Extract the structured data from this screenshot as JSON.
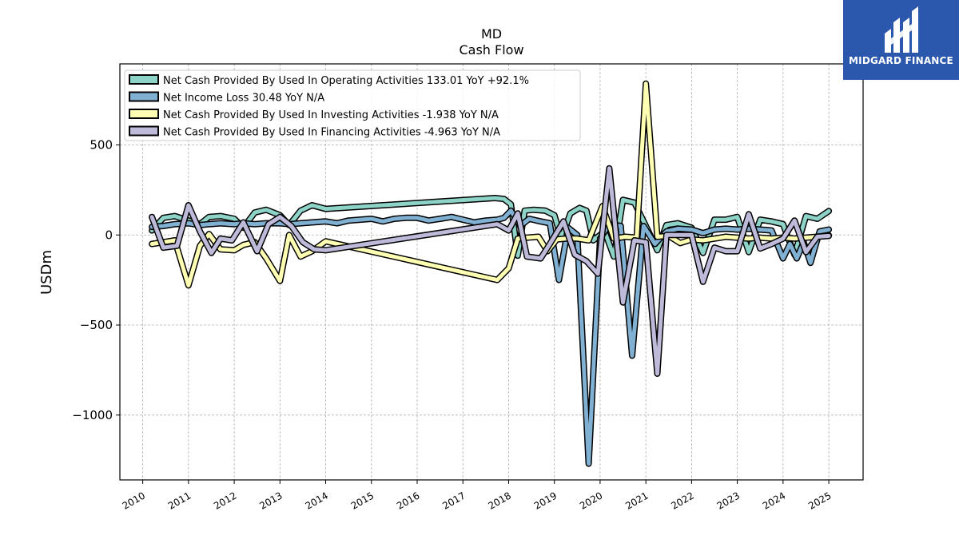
{
  "brand": {
    "name": "MIDGARD FINANCE",
    "color": "#2b57ad"
  },
  "chart_data": {
    "type": "line",
    "title": "MD",
    "subtitle": "Cash Flow",
    "ylabel": "USDm",
    "xlabel": "",
    "xlim": [
      2009.5,
      2025.75
    ],
    "ylim": [
      -1360,
      950
    ],
    "yticks": [
      -1000,
      -500,
      0,
      500
    ],
    "ytick_labels": [
      "−1000",
      "−500",
      "0",
      "500"
    ],
    "xticks": [
      2010,
      2011,
      2012,
      2013,
      2014,
      2015,
      2016,
      2017,
      2018,
      2019,
      2020,
      2021,
      2022,
      2023,
      2024,
      2025
    ],
    "xtick_labels": [
      "2010",
      "2011",
      "2012",
      "2013",
      "2014",
      "2015",
      "2016",
      "2017",
      "2018",
      "2019",
      "2020",
      "2021",
      "2022",
      "2023",
      "2024",
      "2025"
    ],
    "grid": true,
    "legend_position": "top-left",
    "series": [
      {
        "name": "Net Cash Provided By Used In Operating Activities",
        "legend": "Net Cash Provided By Used In Operating Activities  133.01 YoY +92.1%",
        "color": "#8dd3c7",
        "points": [
          [
            2010.2,
            25
          ],
          [
            2010.45,
            95
          ],
          [
            2010.7,
            105
          ],
          [
            2011.0,
            80
          ],
          [
            2011.25,
            60
          ],
          [
            2011.45,
            100
          ],
          [
            2011.7,
            105
          ],
          [
            2012.0,
            90
          ],
          [
            2012.2,
            40
          ],
          [
            2012.45,
            125
          ],
          [
            2012.7,
            140
          ],
          [
            2013.0,
            110
          ],
          [
            2013.2,
            55
          ],
          [
            2013.45,
            135
          ],
          [
            2013.7,
            165
          ],
          [
            2014.0,
            145
          ],
          [
            2017.7,
            205
          ],
          [
            2017.9,
            200
          ],
          [
            2018.05,
            170
          ],
          [
            2018.2,
            -115
          ],
          [
            2018.35,
            135
          ],
          [
            2018.55,
            140
          ],
          [
            2018.8,
            135
          ],
          [
            2019.0,
            110
          ],
          [
            2019.15,
            -20
          ],
          [
            2019.35,
            120
          ],
          [
            2019.55,
            150
          ],
          [
            2019.7,
            135
          ],
          [
            2019.85,
            -30
          ],
          [
            2020.1,
            20
          ],
          [
            2020.3,
            -120
          ],
          [
            2020.5,
            195
          ],
          [
            2020.75,
            180
          ],
          [
            2021.0,
            50
          ],
          [
            2021.25,
            -85
          ],
          [
            2021.45,
            55
          ],
          [
            2021.7,
            65
          ],
          [
            2022.0,
            40
          ],
          [
            2022.25,
            -100
          ],
          [
            2022.5,
            85
          ],
          [
            2022.75,
            85
          ],
          [
            2023.0,
            100
          ],
          [
            2023.25,
            -95
          ],
          [
            2023.5,
            85
          ],
          [
            2023.75,
            75
          ],
          [
            2024.0,
            60
          ],
          [
            2024.25,
            -110
          ],
          [
            2024.5,
            105
          ],
          [
            2024.75,
            90
          ],
          [
            2025.0,
            133
          ]
        ]
      },
      {
        "name": "Net Income Loss",
        "legend": "Net Income Loss  30.48 YoY N/A",
        "color": "#80b1d3",
        "points": [
          [
            2010.2,
            45
          ],
          [
            2010.45,
            50
          ],
          [
            2010.7,
            60
          ],
          [
            2011.0,
            65
          ],
          [
            2011.25,
            55
          ],
          [
            2011.45,
            60
          ],
          [
            2011.7,
            65
          ],
          [
            2012.0,
            60
          ],
          [
            2012.2,
            65
          ],
          [
            2012.45,
            60
          ],
          [
            2012.7,
            65
          ],
          [
            2013.0,
            65
          ],
          [
            2013.2,
            60
          ],
          [
            2013.45,
            65
          ],
          [
            2013.7,
            70
          ],
          [
            2014.0,
            75
          ],
          [
            2014.25,
            65
          ],
          [
            2014.5,
            80
          ],
          [
            2014.75,
            85
          ],
          [
            2015.0,
            90
          ],
          [
            2015.25,
            75
          ],
          [
            2015.5,
            90
          ],
          [
            2015.75,
            95
          ],
          [
            2016.0,
            95
          ],
          [
            2016.25,
            80
          ],
          [
            2016.5,
            90
          ],
          [
            2016.75,
            100
          ],
          [
            2017.0,
            85
          ],
          [
            2017.25,
            70
          ],
          [
            2017.5,
            80
          ],
          [
            2017.75,
            85
          ],
          [
            2017.9,
            95
          ],
          [
            2018.05,
            135
          ],
          [
            2018.25,
            50
          ],
          [
            2018.45,
            90
          ],
          [
            2018.7,
            75
          ],
          [
            2018.9,
            65
          ],
          [
            2019.1,
            -250
          ],
          [
            2019.3,
            40
          ],
          [
            2019.5,
            0
          ],
          [
            2019.75,
            -1270
          ],
          [
            2020.0,
            -20
          ],
          [
            2020.2,
            60
          ],
          [
            2020.45,
            50
          ],
          [
            2020.7,
            -670
          ],
          [
            2020.95,
            50
          ],
          [
            2021.2,
            -50
          ],
          [
            2021.45,
            20
          ],
          [
            2021.7,
            35
          ],
          [
            2022.0,
            30
          ],
          [
            2022.25,
            10
          ],
          [
            2022.5,
            30
          ],
          [
            2022.75,
            35
          ],
          [
            2023.0,
            30
          ],
          [
            2023.25,
            35
          ],
          [
            2023.5,
            30
          ],
          [
            2023.75,
            25
          ],
          [
            2024.0,
            -130
          ],
          [
            2024.15,
            -50
          ],
          [
            2024.3,
            -130
          ],
          [
            2024.45,
            -40
          ],
          [
            2024.6,
            -155
          ],
          [
            2024.8,
            20
          ],
          [
            2025.0,
            30
          ]
        ]
      },
      {
        "name": "Net Cash Provided By Used In Investing Activities",
        "legend": "Net Cash Provided By Used In Investing Activities  -1.938 YoY N/A",
        "color": "#ffffb3",
        "points": [
          [
            2010.2,
            -50
          ],
          [
            2010.45,
            -40
          ],
          [
            2010.7,
            -30
          ],
          [
            2011.0,
            -280
          ],
          [
            2011.25,
            -60
          ],
          [
            2011.45,
            5
          ],
          [
            2011.7,
            -80
          ],
          [
            2012.0,
            -85
          ],
          [
            2012.2,
            -55
          ],
          [
            2012.45,
            -40
          ],
          [
            2012.7,
            -130
          ],
          [
            2013.0,
            -255
          ],
          [
            2013.2,
            0
          ],
          [
            2013.45,
            -120
          ],
          [
            2013.7,
            -90
          ],
          [
            2014.0,
            -35
          ],
          [
            2017.75,
            -250
          ],
          [
            2018.0,
            -185
          ],
          [
            2018.2,
            -20
          ],
          [
            2018.4,
            -15
          ],
          [
            2018.65,
            -10
          ],
          [
            2018.85,
            -90
          ],
          [
            2019.05,
            -25
          ],
          [
            2019.25,
            -20
          ],
          [
            2019.5,
            -20
          ],
          [
            2019.75,
            -30
          ],
          [
            2020.05,
            160
          ],
          [
            2020.3,
            -20
          ],
          [
            2020.55,
            -10
          ],
          [
            2020.8,
            -15
          ],
          [
            2021.0,
            840
          ],
          [
            2021.25,
            -10
          ],
          [
            2021.5,
            -5
          ],
          [
            2021.75,
            -45
          ],
          [
            2022.0,
            -25
          ],
          [
            2022.25,
            -30
          ],
          [
            2022.5,
            -20
          ],
          [
            2022.75,
            -10
          ],
          [
            2023.0,
            -15
          ],
          [
            2023.25,
            -20
          ],
          [
            2023.5,
            -15
          ],
          [
            2023.75,
            -20
          ],
          [
            2024.0,
            -15
          ],
          [
            2024.25,
            -20
          ],
          [
            2024.5,
            -15
          ],
          [
            2024.75,
            -10
          ],
          [
            2025.0,
            -2
          ]
        ]
      },
      {
        "name": "Net Cash Provided By Used In Financing Activities",
        "legend": "Net Cash Provided By Used In Financing Activities  -4.963 YoY N/A",
        "color": "#bebada",
        "points": [
          [
            2010.2,
            100
          ],
          [
            2010.45,
            -70
          ],
          [
            2010.75,
            -60
          ],
          [
            2011.0,
            165
          ],
          [
            2011.25,
            20
          ],
          [
            2011.5,
            -100
          ],
          [
            2011.7,
            -20
          ],
          [
            2011.95,
            -30
          ],
          [
            2012.2,
            70
          ],
          [
            2012.5,
            -90
          ],
          [
            2012.75,
            60
          ],
          [
            2013.0,
            100
          ],
          [
            2013.25,
            50
          ],
          [
            2013.5,
            -40
          ],
          [
            2013.75,
            -80
          ],
          [
            2014.0,
            -85
          ],
          [
            2017.75,
            60
          ],
          [
            2018.0,
            25
          ],
          [
            2018.2,
            120
          ],
          [
            2018.4,
            -120
          ],
          [
            2018.7,
            -130
          ],
          [
            2018.9,
            -50
          ],
          [
            2019.2,
            75
          ],
          [
            2019.45,
            -110
          ],
          [
            2019.7,
            -145
          ],
          [
            2019.95,
            -215
          ],
          [
            2020.2,
            370
          ],
          [
            2020.5,
            -375
          ],
          [
            2020.75,
            -30
          ],
          [
            2021.0,
            -40
          ],
          [
            2021.25,
            -770
          ],
          [
            2021.45,
            0
          ],
          [
            2021.7,
            0
          ],
          [
            2022.0,
            0
          ],
          [
            2022.25,
            -260
          ],
          [
            2022.5,
            -70
          ],
          [
            2022.75,
            -90
          ],
          [
            2023.0,
            -90
          ],
          [
            2023.25,
            115
          ],
          [
            2023.5,
            -75
          ],
          [
            2023.75,
            -50
          ],
          [
            2024.0,
            -20
          ],
          [
            2024.25,
            80
          ],
          [
            2024.5,
            -95
          ],
          [
            2024.75,
            -10
          ],
          [
            2025.0,
            -5
          ]
        ]
      }
    ]
  }
}
